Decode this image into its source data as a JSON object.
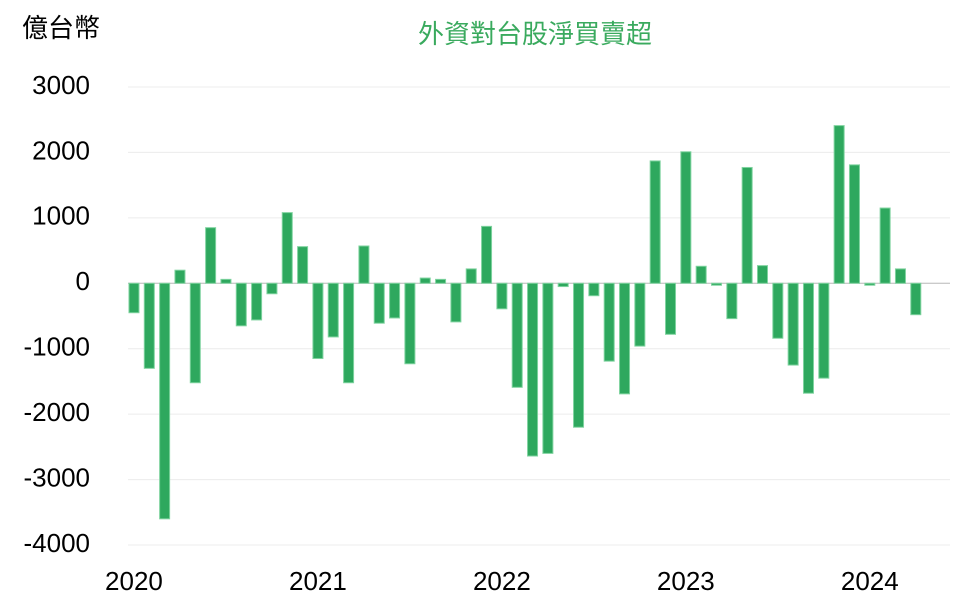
{
  "chart_data": {
    "type": "bar",
    "title": "外資對台股淨買賣超",
    "y_label": "億台幣",
    "categories": [
      "2020",
      null,
      null,
      null,
      null,
      null,
      null,
      null,
      null,
      null,
      null,
      null,
      "2021",
      null,
      null,
      null,
      null,
      null,
      null,
      null,
      null,
      null,
      null,
      null,
      "2022",
      null,
      null,
      null,
      null,
      null,
      null,
      null,
      null,
      null,
      null,
      null,
      "2023",
      null,
      null,
      null,
      null,
      null,
      null,
      null,
      null,
      null,
      null,
      null,
      "2024",
      null,
      null,
      null
    ],
    "values": [
      -450,
      -1300,
      -3600,
      200,
      -1520,
      850,
      60,
      -650,
      -560,
      -160,
      1080,
      560,
      -1150,
      -820,
      -1520,
      570,
      -610,
      -530,
      -1230,
      80,
      60,
      -590,
      220,
      870,
      -390,
      -1590,
      -2640,
      -2600,
      -50,
      -2200,
      -190,
      -1190,
      -1690,
      -960,
      1870,
      -780,
      2010,
      260,
      -30,
      -540,
      1770,
      270,
      -840,
      -1250,
      -1680,
      -1450,
      2410,
      1810,
      -30,
      1150,
      220,
      -480
    ],
    "color": "#2ea85e",
    "ylim": [
      -4000,
      3000
    ],
    "yticks": [
      -4000,
      -3000,
      -2000,
      -1000,
      0,
      1000,
      2000,
      3000
    ],
    "grid": true
  }
}
